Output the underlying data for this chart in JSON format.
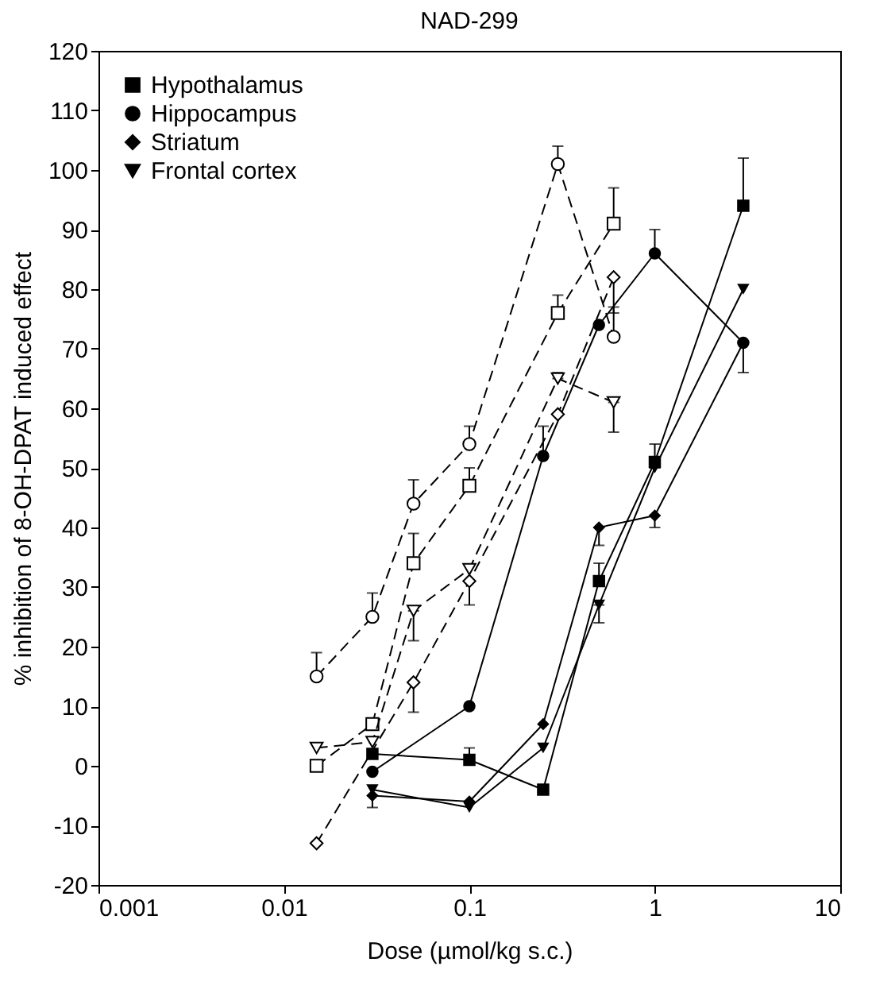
{
  "chart_data": {
    "type": "line",
    "title": "NAD-299",
    "xlabel": "Dose (µmol/kg s.c.)",
    "ylabel": "% inhibition of 8-OH-DPAT induced effect",
    "log": "x",
    "xlim": [
      0.001,
      10
    ],
    "xticks": [
      0.001,
      0.01,
      0.1,
      1,
      10
    ],
    "ylim": [
      -20,
      120
    ],
    "yticks": [
      -20,
      -10,
      0,
      10,
      20,
      30,
      40,
      50,
      60,
      70,
      80,
      90,
      100,
      110,
      120
    ],
    "grid": false,
    "legend": "top left",
    "series": [
      {
        "name": "Hypothalamus",
        "color": "#000000",
        "marker": "square",
        "line_style": "solid",
        "x": [
          0.03,
          0.1,
          0.25,
          0.5,
          1,
          3
        ],
        "values": [
          2,
          1,
          -4,
          31,
          51,
          94
        ],
        "errors": [
          null,
          [
            1,
            3
          ],
          null,
          [
            31,
            34
          ],
          null,
          [
            94,
            102
          ]
        ]
      },
      {
        "name": "Hippocampus",
        "color": "#000000",
        "marker": "circle",
        "line_style": "solid",
        "x": [
          0.03,
          0.1,
          0.25,
          0.5,
          1,
          3
        ],
        "values": [
          -1,
          10,
          52,
          74,
          86,
          71
        ],
        "errors": [
          null,
          null,
          [
            52,
            57
          ],
          null,
          [
            86,
            90
          ],
          [
            66,
            71
          ]
        ]
      },
      {
        "name": "Striatum",
        "color": "#000000",
        "marker": "diamond",
        "line_style": "solid",
        "x": [
          0.03,
          0.1,
          0.25,
          0.5,
          1,
          3
        ],
        "values": [
          -5,
          -6,
          7,
          40,
          42,
          71
        ],
        "errors": [
          [
            -7,
            -5
          ],
          null,
          null,
          [
            37,
            40
          ],
          [
            40,
            42
          ],
          null
        ]
      },
      {
        "name": "Frontal cortex",
        "color": "#000000",
        "marker": "triangle-down",
        "line_style": "solid",
        "x": [
          0.03,
          0.1,
          0.25,
          0.5,
          1,
          3
        ],
        "values": [
          -4,
          -7,
          3,
          27,
          50,
          80
        ],
        "errors": [
          null,
          null,
          null,
          [
            24,
            27
          ],
          [
            50,
            54
          ],
          null
        ]
      },
      {
        "color": "#000000",
        "marker": "square",
        "line_style": "dashed",
        "x": [
          0.015,
          0.03,
          0.05,
          0.1,
          0.3,
          0.6
        ],
        "values": [
          0,
          7,
          34,
          47,
          76,
          91
        ],
        "errors": [
          null,
          null,
          [
            34,
            39
          ],
          [
            47,
            50
          ],
          [
            76,
            79
          ],
          [
            91,
            97
          ]
        ]
      },
      {
        "color": "#000000",
        "marker": "circle",
        "line_style": "dashed",
        "x": [
          0.015,
          0.03,
          0.05,
          0.1,
          0.3,
          0.6
        ],
        "values": [
          15,
          25,
          44,
          54,
          101,
          72
        ],
        "errors": [
          [
            15,
            19
          ],
          [
            25,
            29
          ],
          [
            44,
            48
          ],
          [
            54,
            57
          ],
          [
            101,
            104
          ],
          [
            72,
            77
          ]
        ]
      },
      {
        "color": "#000000",
        "marker": "diamond",
        "line_style": "dashed",
        "x": [
          0.015,
          0.05,
          0.1,
          0.3,
          0.6
        ],
        "values": [
          -13,
          14,
          31,
          59,
          82
        ],
        "errors": [
          null,
          [
            9,
            14
          ],
          [
            27,
            31
          ],
          null,
          [
            76,
            82
          ]
        ]
      },
      {
        "color": "#000000",
        "marker": "triangle-down",
        "line_style": "dashed",
        "x": [
          0.015,
          0.03,
          0.05,
          0.1,
          0.3,
          0.6
        ],
        "values": [
          3,
          4,
          26,
          33,
          65,
          61
        ],
        "errors": [
          null,
          null,
          [
            21,
            26
          ],
          null,
          [
            65,
            66
          ],
          [
            56,
            61
          ]
        ]
      }
    ]
  }
}
